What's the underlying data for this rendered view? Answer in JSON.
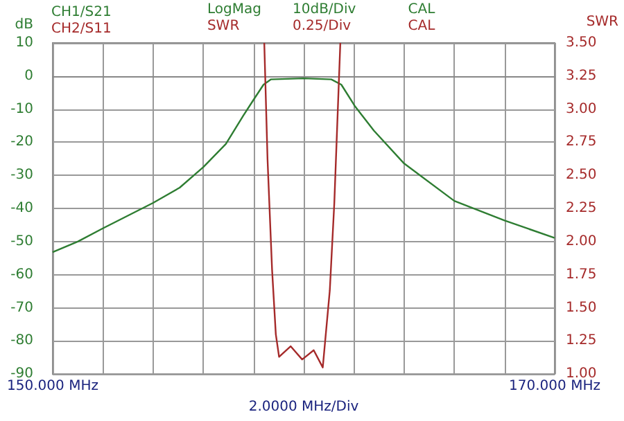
{
  "chart_data": {
    "type": "line",
    "xlim": [
      150,
      170
    ],
    "xticks": [
      {
        "value": 150,
        "label": "150.000 MHz"
      },
      {
        "value": 152,
        "label": null
      },
      {
        "value": 154,
        "label": null
      },
      {
        "value": 156,
        "label": null
      },
      {
        "value": 158,
        "label": null
      },
      {
        "value": 160,
        "label": null
      },
      {
        "value": 162,
        "label": null
      },
      {
        "value": 164,
        "label": null
      },
      {
        "value": 166,
        "label": null
      },
      {
        "value": 168,
        "label": null
      },
      {
        "value": 170,
        "label": "170.000 MHz"
      }
    ],
    "ylim": [
      -90,
      10
    ],
    "yticks": [
      -90,
      -80,
      -70,
      -60,
      -50,
      -40,
      -30,
      -20,
      -10,
      0,
      10
    ],
    "y2lim": [
      1,
      3.5
    ],
    "y2ticks": [
      {
        "value": 1,
        "label": "1.00"
      },
      {
        "value": 1.25,
        "label": "1.25"
      },
      {
        "value": 1.5,
        "label": "1.50"
      },
      {
        "value": 1.75,
        "label": "1.75"
      },
      {
        "value": 2,
        "label": "2.00"
      },
      {
        "value": 2.25,
        "label": "2.25"
      },
      {
        "value": 2.5,
        "label": "2.50"
      },
      {
        "value": 2.75,
        "label": "2.75"
      },
      {
        "value": 3,
        "label": "3.00"
      },
      {
        "value": 3.25,
        "label": "3.25"
      },
      {
        "value": 3.5,
        "label": "3.50"
      }
    ],
    "xlabel": "2.0000 MHz/Div",
    "ylabel": "dB",
    "y2label": "SWR",
    "grid": true,
    "legend": "top left",
    "marker": "none",
    "line_style": "solid",
    "annotations": [
      "LogMag",
      "10dB/Div",
      "CAL",
      "SWR",
      "0.25/Div",
      "CAL"
    ],
    "series": [
      {
        "name": "CH1/S21",
        "color": "#2e7d32",
        "x": [
          150,
          151,
          152,
          154,
          155.06,
          156,
          156.9,
          157.6,
          158,
          158.4,
          158.7,
          160,
          161.1,
          161.5,
          162.05,
          162.8,
          164,
          166,
          168,
          170
        ],
        "values": [
          -53.2,
          -50,
          -46,
          -38.3,
          -33.7,
          -27.5,
          -20.5,
          -11.9,
          -7.2,
          -2.6,
          -1.0,
          -0.7,
          -1.0,
          -2.6,
          -9.2,
          -16.5,
          -26.4,
          -37.7,
          -43.6,
          -48.9
        ]
      },
      {
        "name": "CH2/S11",
        "color": "#a52a2a",
        "axis": "y2",
        "x": [
          158.43,
          158.56,
          158.74,
          158.89,
          159.02,
          159.48,
          159.94,
          160.4,
          160.76,
          161.04,
          161.22,
          161.46
        ],
        "values": [
          3.5,
          2.62,
          1.79,
          1.3,
          1.13,
          1.21,
          1.11,
          1.18,
          1.05,
          1.63,
          2.29,
          3.5
        ]
      }
    ]
  }
}
